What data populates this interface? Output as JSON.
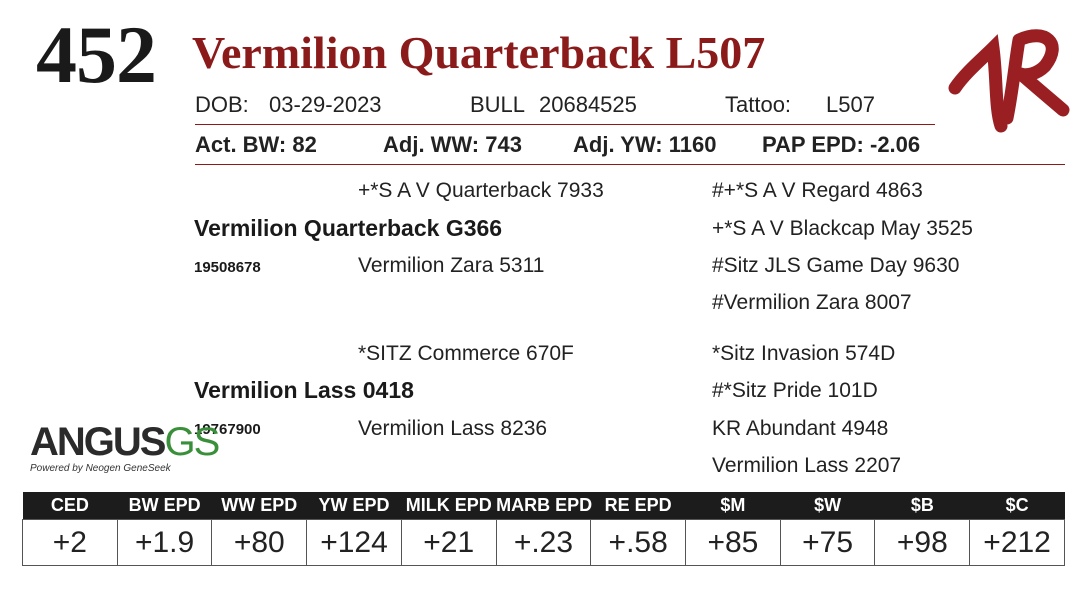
{
  "lot_number": "452",
  "animal_name": "Vermilion Quarterback L507",
  "details": {
    "dob_label": "DOB:",
    "dob_value": "03-29-2023",
    "sex": "BULL",
    "registration": "20684525",
    "tattoo_label": "Tattoo:",
    "tattoo_value": "L507"
  },
  "performance": {
    "act_bw": "Act. BW: 82",
    "adj_ww": "Adj. WW: 743",
    "adj_yw": "Adj. YW: 1160",
    "pap_epd": "PAP EPD: -2.06"
  },
  "pedigree": {
    "sire": {
      "name": "Vermilion Quarterback G366",
      "reg": "19508678",
      "sire": "+*S A V Quarterback 7933",
      "dam": "Vermilion Zara 5311",
      "sire_sire": "#+*S A V Regard 4863",
      "sire_dam": "+*S A V Blackcap May 3525",
      "dam_sire": "#Sitz JLS Game Day 9630",
      "dam_dam": "#Vermilion Zara 8007"
    },
    "dam": {
      "name": "Vermilion Lass 0418",
      "reg": "19767900",
      "sire": "*SITZ Commerce 670F",
      "dam": "Vermilion Lass 8236",
      "sire_sire": "*Sitz Invasion 574D",
      "sire_dam": "#*Sitz Pride 101D",
      "dam_sire": "KR Abundant 4948",
      "dam_dam": "Vermilion Lass 2207"
    }
  },
  "logos": {
    "ranch_mark": "VR brand",
    "angus_word": "ANGUS",
    "angus_gs": "GS",
    "angus_tagline": "Powered by Neogen GeneSeek"
  },
  "epd_table": {
    "headers": [
      "CED",
      "BW EPD",
      "WW EPD",
      "YW EPD",
      "MILK EPD",
      "MARB EPD",
      "RE EPD",
      "$M",
      "$W",
      "$B",
      "$C"
    ],
    "values": [
      "+2",
      "+1.9",
      "+80",
      "+124",
      "+21",
      "+.23",
      "+.58",
      "+85",
      "+75",
      "+98",
      "+212"
    ]
  },
  "colors": {
    "name_red": "#8b1a1a",
    "header_bg": "#1c1c1c",
    "angus_green": "#3a8f3a"
  }
}
